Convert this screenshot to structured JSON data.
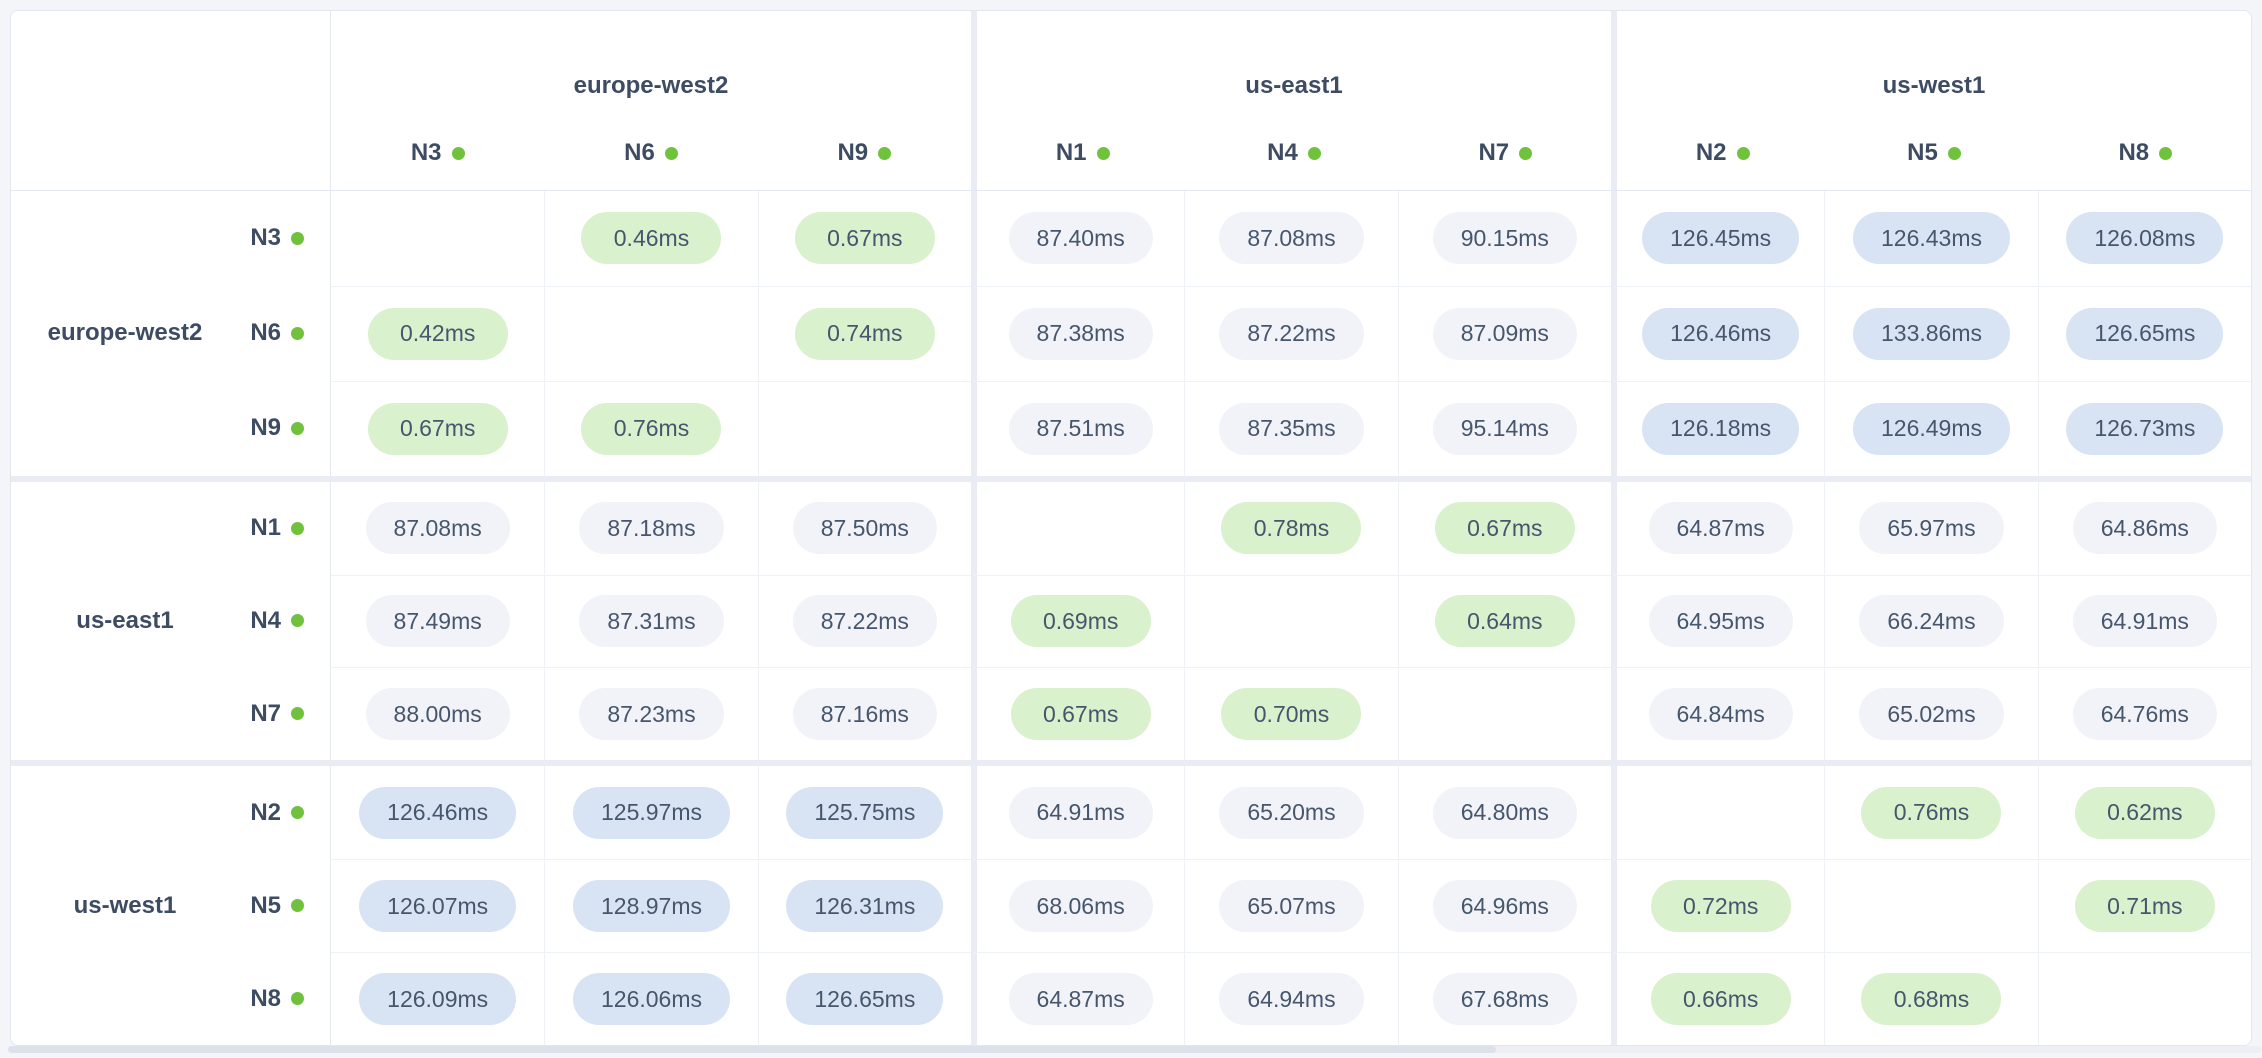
{
  "colors": {
    "page_bg": "#f3f5f9",
    "card_bg": "#ffffff",
    "same_region_pill_bg": "#d9f1cd",
    "cross_region_pill_bg": "#f1f3f8",
    "high_latency_pill_bg": "#d8e4f4",
    "node_status_dot": "#70c23d",
    "header_text": "#3d4c63",
    "value_text": "#46566c"
  },
  "chart_data": {
    "type": "heatmap",
    "unit": "ms",
    "regions": [
      {
        "name": "europe-west2",
        "nodes": [
          "N3",
          "N6",
          "N9"
        ]
      },
      {
        "name": "us-east1",
        "nodes": [
          "N1",
          "N4",
          "N7"
        ]
      },
      {
        "name": "us-west1",
        "nodes": [
          "N2",
          "N5",
          "N8"
        ]
      }
    ],
    "columns": [
      "N3",
      "N6",
      "N9",
      "N1",
      "N4",
      "N7",
      "N2",
      "N5",
      "N8"
    ],
    "rows": [
      {
        "region": "europe-west2",
        "node": "N3",
        "values": [
          null,
          0.46,
          0.67,
          87.4,
          87.08,
          90.15,
          126.45,
          126.43,
          126.08
        ],
        "display": [
          "",
          "0.46ms",
          "0.67ms",
          "87.40ms",
          "87.08ms",
          "90.15ms",
          "126.45ms",
          "126.43ms",
          "126.08ms"
        ]
      },
      {
        "region": "europe-west2",
        "node": "N6",
        "values": [
          0.42,
          null,
          0.74,
          87.38,
          87.22,
          87.09,
          126.46,
          133.86,
          126.65
        ],
        "display": [
          "0.42ms",
          "",
          "0.74ms",
          "87.38ms",
          "87.22ms",
          "87.09ms",
          "126.46ms",
          "133.86ms",
          "126.65ms"
        ]
      },
      {
        "region": "europe-west2",
        "node": "N9",
        "values": [
          0.67,
          0.76,
          null,
          87.51,
          87.35,
          95.14,
          126.18,
          126.49,
          126.73
        ],
        "display": [
          "0.67ms",
          "0.76ms",
          "",
          "87.51ms",
          "87.35ms",
          "95.14ms",
          "126.18ms",
          "126.49ms",
          "126.73ms"
        ]
      },
      {
        "region": "us-east1",
        "node": "N1",
        "values": [
          87.08,
          87.18,
          87.5,
          null,
          0.78,
          0.67,
          64.87,
          65.97,
          64.86
        ],
        "display": [
          "87.08ms",
          "87.18ms",
          "87.50ms",
          "",
          "0.78ms",
          "0.67ms",
          "64.87ms",
          "65.97ms",
          "64.86ms"
        ]
      },
      {
        "region": "us-east1",
        "node": "N4",
        "values": [
          87.49,
          87.31,
          87.22,
          0.69,
          null,
          0.64,
          64.95,
          66.24,
          64.91
        ],
        "display": [
          "87.49ms",
          "87.31ms",
          "87.22ms",
          "0.69ms",
          "",
          "0.64ms",
          "64.95ms",
          "66.24ms",
          "64.91ms"
        ]
      },
      {
        "region": "us-east1",
        "node": "N7",
        "values": [
          88.0,
          87.23,
          87.16,
          0.67,
          0.7,
          null,
          64.84,
          65.02,
          64.76
        ],
        "display": [
          "88.00ms",
          "87.23ms",
          "87.16ms",
          "0.67ms",
          "0.70ms",
          "",
          "64.84ms",
          "65.02ms",
          "64.76ms"
        ]
      },
      {
        "region": "us-west1",
        "node": "N2",
        "values": [
          126.46,
          125.97,
          125.75,
          64.91,
          65.2,
          64.8,
          null,
          0.76,
          0.62
        ],
        "display": [
          "126.46ms",
          "125.97ms",
          "125.75ms",
          "64.91ms",
          "65.20ms",
          "64.80ms",
          "",
          "0.76ms",
          "0.62ms"
        ]
      },
      {
        "region": "us-west1",
        "node": "N5",
        "values": [
          126.07,
          128.97,
          126.31,
          68.06,
          65.07,
          64.96,
          0.72,
          null,
          0.71
        ],
        "display": [
          "126.07ms",
          "128.97ms",
          "126.31ms",
          "68.06ms",
          "65.07ms",
          "64.96ms",
          "0.72ms",
          "",
          "0.71ms"
        ]
      },
      {
        "region": "us-west1",
        "node": "N8",
        "values": [
          126.09,
          126.06,
          126.65,
          64.87,
          64.94,
          67.68,
          0.66,
          0.68,
          null
        ],
        "display": [
          "126.09ms",
          "126.06ms",
          "126.65ms",
          "64.87ms",
          "64.94ms",
          "67.68ms",
          "0.66ms",
          "0.68ms",
          ""
        ]
      }
    ]
  }
}
